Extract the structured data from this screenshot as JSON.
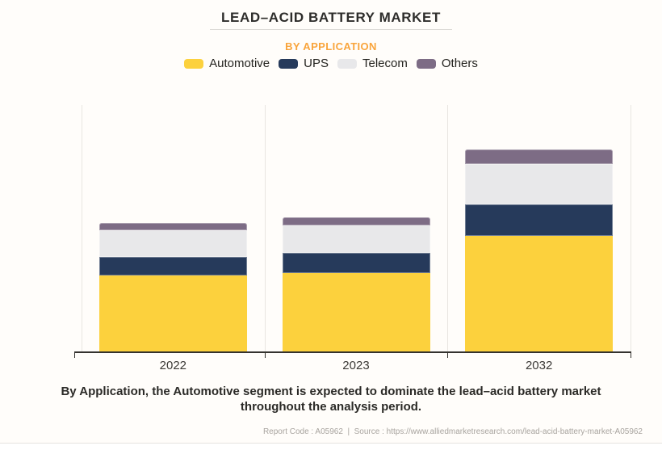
{
  "header": {
    "title": "LEAD–ACID BATTERY MARKET",
    "subtitle": "BY APPLICATION",
    "subtitle_color": "#F9A43B"
  },
  "legend": {
    "items": [
      {
        "label": "Automotive",
        "color": "#FCD13D"
      },
      {
        "label": "UPS",
        "color": "#263A5B"
      },
      {
        "label": "Telecom",
        "color": "#E8E8EA"
      },
      {
        "label": "Others",
        "color": "#7D6C85"
      }
    ]
  },
  "chart_data": {
    "type": "bar",
    "stacked": true,
    "title": "LEAD–ACID BATTERY MARKET",
    "subtitle": "BY APPLICATION",
    "categories": [
      "2022",
      "2023",
      "2032"
    ],
    "series": [
      {
        "name": "Automotive",
        "color": "#FCD13D",
        "values": [
          94,
          97,
          143
        ]
      },
      {
        "name": "UPS",
        "color": "#263A5B",
        "values": [
          23,
          25,
          39
        ]
      },
      {
        "name": "Telecom",
        "color": "#E8E8EA",
        "values": [
          33,
          34,
          50
        ]
      },
      {
        "name": "Others",
        "color": "#7D6C85",
        "values": [
          9,
          10,
          18
        ]
      }
    ],
    "xlabel": "",
    "ylabel": "",
    "units": "relative height (no numeric value axis shown in chart)",
    "value_axis_visible": false,
    "grid": "vertical-category-separators",
    "legend_position": "top"
  },
  "footer": {
    "message": "By Application, the Automotive segment is expected to dominate the lead–acid battery market throughout the analysis period.",
    "report_line": "Report Code : A05962  |  Source : https://www.alliedmarketresearch.com/lead-acid-battery-market-A05962"
  }
}
